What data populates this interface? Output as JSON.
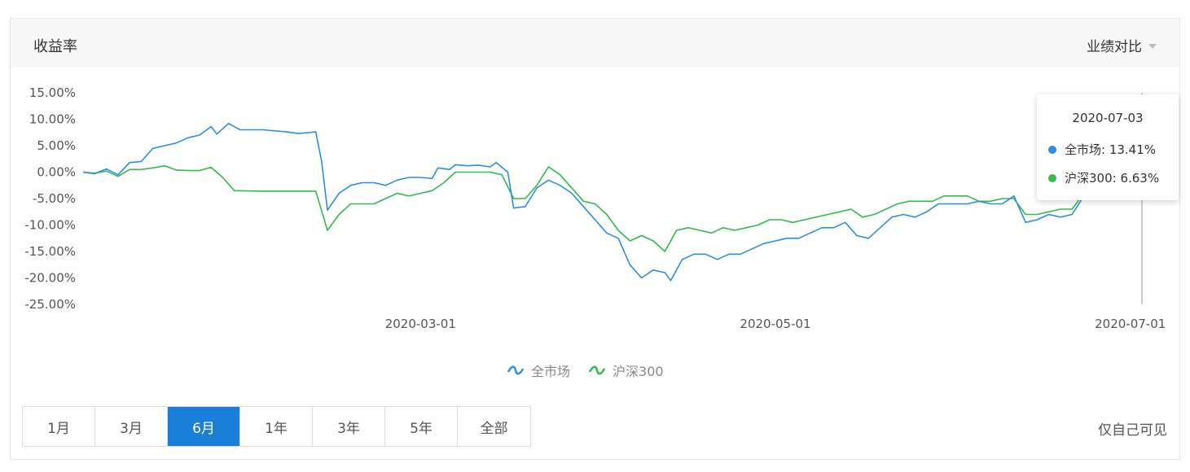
{
  "header": {
    "title": "收益率",
    "compare_label": "业绩对比"
  },
  "colors": {
    "quanshichang": "#2b8fe3",
    "hushen300": "#33bb4c",
    "active_range": "#1a7fd9"
  },
  "tooltip": {
    "date": "2020-07-03",
    "rows": [
      {
        "label": "全市场: 13.41%",
        "color": "#2b8fe3"
      },
      {
        "label": "沪深300: 6.63%",
        "color": "#33bb4c"
      }
    ]
  },
  "ranges": [
    "1月",
    "3月",
    "6月",
    "1年",
    "3年",
    "5年",
    "全部"
  ],
  "active_range": "6月",
  "footer_note": "仅自己可见",
  "chart_data": {
    "type": "line",
    "x_range": [
      "2020-01-03",
      "2020-07-03"
    ],
    "x_ticks": [
      "2020-03-01",
      "2020-05-01",
      "2020-07-01"
    ],
    "y_ticks": [
      "15.00%",
      "10.00%",
      "5.00%",
      "0.00%",
      "-5.00%",
      "-10.00%",
      "-15.00%",
      "-20.00%",
      "-25.00%"
    ],
    "ylim": [
      -25,
      15
    ],
    "grid": false,
    "legend_position": "bottom",
    "series": [
      {
        "name": "全市场",
        "color": "#2b8fe3",
        "points": [
          [
            "2020-01-03",
            0.0
          ],
          [
            "2020-01-05",
            -0.3
          ],
          [
            "2020-01-07",
            0.6
          ],
          [
            "2020-01-09",
            -0.5
          ],
          [
            "2020-01-11",
            1.8
          ],
          [
            "2020-01-13",
            2.0
          ],
          [
            "2020-01-15",
            4.5
          ],
          [
            "2020-01-17",
            5.0
          ],
          [
            "2020-01-19",
            5.5
          ],
          [
            "2020-01-21",
            6.5
          ],
          [
            "2020-01-23",
            7.0
          ],
          [
            "2020-01-25",
            8.6
          ],
          [
            "2020-01-26",
            7.2
          ],
          [
            "2020-01-28",
            9.2
          ],
          [
            "2020-01-30",
            8.0
          ],
          [
            "2020-02-03",
            8.0
          ],
          [
            "2020-02-07",
            7.6
          ],
          [
            "2020-02-09",
            7.3
          ],
          [
            "2020-02-12",
            7.6
          ],
          [
            "2020-02-13",
            2.0
          ],
          [
            "2020-02-14",
            -7.2
          ],
          [
            "2020-02-16",
            -4.0
          ],
          [
            "2020-02-18",
            -2.5
          ],
          [
            "2020-02-20",
            -2.0
          ],
          [
            "2020-02-22",
            -2.0
          ],
          [
            "2020-02-24",
            -2.5
          ],
          [
            "2020-02-26",
            -1.5
          ],
          [
            "2020-02-28",
            -1.0
          ],
          [
            "2020-03-01",
            -1.0
          ],
          [
            "2020-03-03",
            -1.2
          ],
          [
            "2020-03-04",
            0.8
          ],
          [
            "2020-03-06",
            0.5
          ],
          [
            "2020-03-07",
            1.4
          ],
          [
            "2020-03-09",
            1.2
          ],
          [
            "2020-03-11",
            1.3
          ],
          [
            "2020-03-13",
            1.0
          ],
          [
            "2020-03-14",
            1.8
          ],
          [
            "2020-03-16",
            0.0
          ],
          [
            "2020-03-17",
            -6.8
          ],
          [
            "2020-03-19",
            -6.5
          ],
          [
            "2020-03-21",
            -3.0
          ],
          [
            "2020-03-23",
            -1.5
          ],
          [
            "2020-03-25",
            -2.5
          ],
          [
            "2020-03-27",
            -4.0
          ],
          [
            "2020-03-29",
            -6.5
          ],
          [
            "2020-03-31",
            -9.0
          ],
          [
            "2020-04-02",
            -11.5
          ],
          [
            "2020-04-04",
            -12.5
          ],
          [
            "2020-04-06",
            -17.5
          ],
          [
            "2020-04-08",
            -20.0
          ],
          [
            "2020-04-10",
            -18.5
          ],
          [
            "2020-04-12",
            -19.0
          ],
          [
            "2020-04-13",
            -20.5
          ],
          [
            "2020-04-15",
            -16.5
          ],
          [
            "2020-04-17",
            -15.5
          ],
          [
            "2020-04-19",
            -15.5
          ],
          [
            "2020-04-21",
            -16.5
          ],
          [
            "2020-04-23",
            -15.5
          ],
          [
            "2020-04-25",
            -15.5
          ],
          [
            "2020-04-27",
            -14.5
          ],
          [
            "2020-04-29",
            -13.5
          ],
          [
            "2020-05-01",
            -13.0
          ],
          [
            "2020-05-03",
            -12.5
          ],
          [
            "2020-05-05",
            -12.5
          ],
          [
            "2020-05-07",
            -11.5
          ],
          [
            "2020-05-09",
            -10.5
          ],
          [
            "2020-05-11",
            -10.5
          ],
          [
            "2020-05-13",
            -9.5
          ],
          [
            "2020-05-15",
            -12.0
          ],
          [
            "2020-05-17",
            -12.5
          ],
          [
            "2020-05-19",
            -10.5
          ],
          [
            "2020-05-21",
            -8.5
          ],
          [
            "2020-05-23",
            -8.0
          ],
          [
            "2020-05-25",
            -8.5
          ],
          [
            "2020-05-27",
            -7.5
          ],
          [
            "2020-05-29",
            -6.0
          ],
          [
            "2020-06-01",
            -6.0
          ],
          [
            "2020-06-03",
            -6.0
          ],
          [
            "2020-06-05",
            -5.5
          ],
          [
            "2020-06-07",
            -6.0
          ],
          [
            "2020-06-09",
            -6.0
          ],
          [
            "2020-06-11",
            -4.5
          ],
          [
            "2020-06-13",
            -9.5
          ],
          [
            "2020-06-15",
            -9.0
          ],
          [
            "2020-06-17",
            -8.0
          ],
          [
            "2020-06-19",
            -8.5
          ],
          [
            "2020-06-21",
            -8.0
          ],
          [
            "2020-06-23",
            -4.5
          ],
          [
            "2020-06-25",
            -2.5
          ],
          [
            "2020-06-27",
            -1.8
          ],
          [
            "2020-06-29",
            -3.8
          ],
          [
            "2020-07-01",
            -3.5
          ],
          [
            "2020-07-02",
            -1.0
          ],
          [
            "2020-07-03",
            13.41
          ]
        ]
      },
      {
        "name": "沪深300",
        "color": "#33bb4c",
        "points": [
          [
            "2020-01-03",
            0.0
          ],
          [
            "2020-01-05",
            -0.2
          ],
          [
            "2020-01-07",
            0.2
          ],
          [
            "2020-01-09",
            -0.8
          ],
          [
            "2020-01-11",
            0.5
          ],
          [
            "2020-01-13",
            0.5
          ],
          [
            "2020-01-15",
            0.8
          ],
          [
            "2020-01-17",
            1.2
          ],
          [
            "2020-01-19",
            0.4
          ],
          [
            "2020-01-21",
            0.3
          ],
          [
            "2020-01-23",
            0.3
          ],
          [
            "2020-01-25",
            0.9
          ],
          [
            "2020-01-27",
            -1.0
          ],
          [
            "2020-01-29",
            -3.5
          ],
          [
            "2020-02-03",
            -3.6
          ],
          [
            "2020-02-10",
            -3.6
          ],
          [
            "2020-02-12",
            -3.6
          ],
          [
            "2020-02-14",
            -11.0
          ],
          [
            "2020-02-16",
            -8.0
          ],
          [
            "2020-02-18",
            -6.0
          ],
          [
            "2020-02-20",
            -6.0
          ],
          [
            "2020-02-22",
            -6.0
          ],
          [
            "2020-02-24",
            -5.0
          ],
          [
            "2020-02-26",
            -4.0
          ],
          [
            "2020-02-28",
            -4.5
          ],
          [
            "2020-03-01",
            -4.0
          ],
          [
            "2020-03-03",
            -3.5
          ],
          [
            "2020-03-05",
            -2.0
          ],
          [
            "2020-03-07",
            0.0
          ],
          [
            "2020-03-10",
            0.0
          ],
          [
            "2020-03-13",
            0.0
          ],
          [
            "2020-03-15",
            -0.5
          ],
          [
            "2020-03-17",
            -5.0
          ],
          [
            "2020-03-19",
            -5.0
          ],
          [
            "2020-03-21",
            -2.5
          ],
          [
            "2020-03-23",
            1.0
          ],
          [
            "2020-03-25",
            -0.5
          ],
          [
            "2020-03-27",
            -3.0
          ],
          [
            "2020-03-29",
            -5.5
          ],
          [
            "2020-03-31",
            -6.0
          ],
          [
            "2020-04-02",
            -8.0
          ],
          [
            "2020-04-04",
            -11.0
          ],
          [
            "2020-04-06",
            -13.0
          ],
          [
            "2020-04-08",
            -12.0
          ],
          [
            "2020-04-10",
            -13.0
          ],
          [
            "2020-04-12",
            -15.0
          ],
          [
            "2020-04-14",
            -11.0
          ],
          [
            "2020-04-16",
            -10.5
          ],
          [
            "2020-04-18",
            -11.0
          ],
          [
            "2020-04-20",
            -11.5
          ],
          [
            "2020-04-22",
            -10.5
          ],
          [
            "2020-04-24",
            -11.0
          ],
          [
            "2020-04-26",
            -10.5
          ],
          [
            "2020-04-28",
            -10.0
          ],
          [
            "2020-04-30",
            -9.0
          ],
          [
            "2020-05-02",
            -9.0
          ],
          [
            "2020-05-04",
            -9.5
          ],
          [
            "2020-05-06",
            -9.0
          ],
          [
            "2020-05-08",
            -8.5
          ],
          [
            "2020-05-10",
            -8.0
          ],
          [
            "2020-05-12",
            -7.5
          ],
          [
            "2020-05-14",
            -7.0
          ],
          [
            "2020-05-16",
            -8.5
          ],
          [
            "2020-05-18",
            -8.0
          ],
          [
            "2020-05-20",
            -7.0
          ],
          [
            "2020-05-22",
            -6.0
          ],
          [
            "2020-05-24",
            -5.5
          ],
          [
            "2020-05-26",
            -5.5
          ],
          [
            "2020-05-28",
            -5.5
          ],
          [
            "2020-05-30",
            -4.5
          ],
          [
            "2020-06-01",
            -4.5
          ],
          [
            "2020-06-03",
            -4.5
          ],
          [
            "2020-06-05",
            -5.5
          ],
          [
            "2020-06-07",
            -5.5
          ],
          [
            "2020-06-09",
            -5.0
          ],
          [
            "2020-06-11",
            -5.0
          ],
          [
            "2020-06-13",
            -8.0
          ],
          [
            "2020-06-15",
            -8.0
          ],
          [
            "2020-06-17",
            -7.5
          ],
          [
            "2020-06-19",
            -7.0
          ],
          [
            "2020-06-21",
            -7.0
          ],
          [
            "2020-06-23",
            -4.0
          ],
          [
            "2020-06-25",
            -3.8
          ],
          [
            "2020-06-27",
            -3.5
          ],
          [
            "2020-06-29",
            -3.2
          ],
          [
            "2020-07-01",
            -3.5
          ],
          [
            "2020-07-02",
            -2.0
          ],
          [
            "2020-07-03",
            6.63
          ]
        ]
      }
    ]
  }
}
